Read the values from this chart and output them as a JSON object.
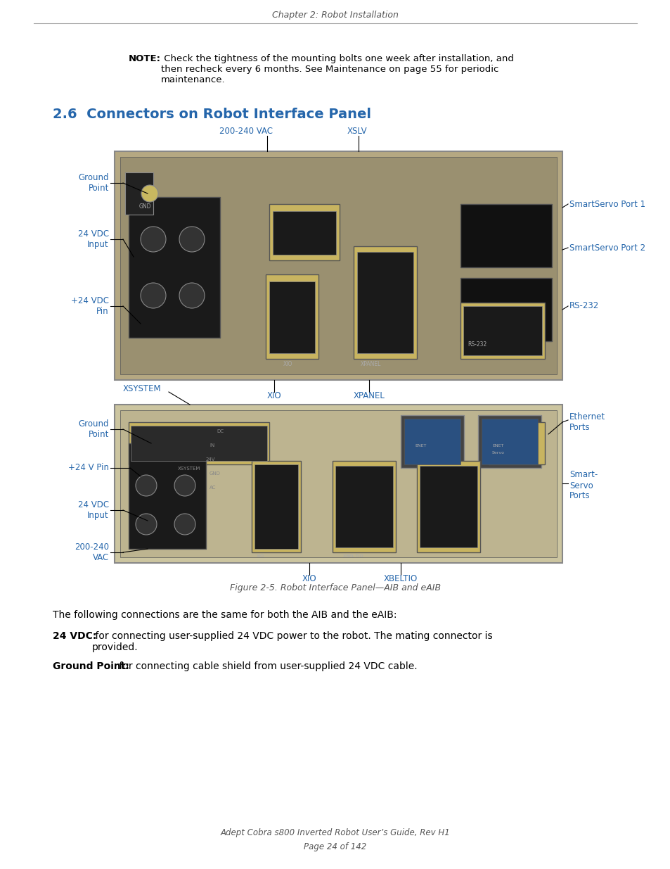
{
  "page_width": 9.54,
  "page_height": 12.35,
  "dpi": 100,
  "bg_color": "#ffffff",
  "header_text": "Chapter 2: Robot Installation",
  "footer_line1": "Adept Cobra s800 Inverted Robot User’s Guide, Rev H1",
  "footer_line2": "Page 24 of 142",
  "note_bold": "NOTE:",
  "note_rest": " Check the tightness of the mounting bolts one week after installation, and\nthen recheck every 6 months. See Maintenance on page 55 for periodic\nmaintenance.",
  "section_title": "2.6  Connectors on Robot Interface Panel",
  "section_title_color": "#2566ab",
  "fig_caption": "Figure 2-5. Robot Interface Panel—AIB and eAIB",
  "body_text1": "The following connections are the same for both the AIB and the eAIB:",
  "body_text2_bold": "24 VDC:",
  "body_text2_rest": " for connecting user-supplied 24 VDC power to the robot. The mating connector is\nprovided.",
  "body_text3_bold": "Ground Point:",
  "body_text3_rest": " for connecting cable shield from user-supplied 24 VDC cable.",
  "label_color": "#2566ab",
  "label_fontsize": 8.5,
  "body_fontsize": 10,
  "section_fontsize": 14
}
